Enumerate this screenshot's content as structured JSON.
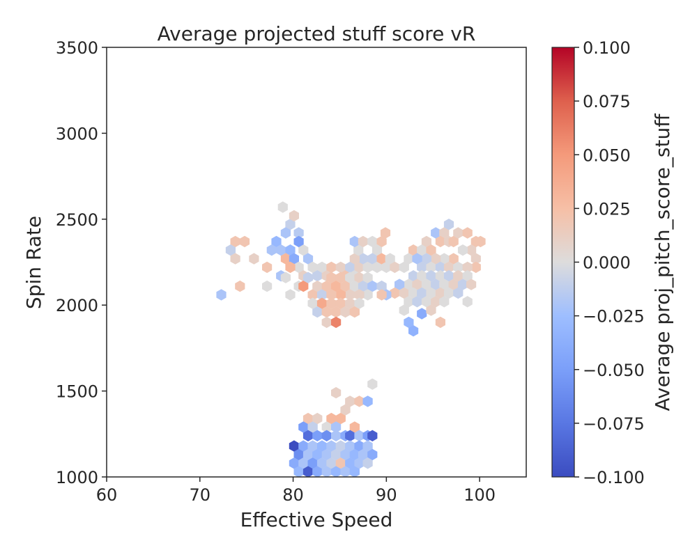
{
  "chart_data": {
    "type": "heatmap",
    "subtype": "hexbin",
    "title": "Average projected stuff score vR",
    "xlabel": "Effective Speed",
    "ylabel": "Spin Rate",
    "xlim": [
      60,
      105
    ],
    "ylim": [
      1000,
      3500
    ],
    "xticks": [
      60,
      70,
      80,
      90,
      100
    ],
    "yticks": [
      1000,
      1500,
      2000,
      2500,
      3000,
      3500
    ],
    "grid": false,
    "colorbar": {
      "label": "Average proj_pitch_score_stuff",
      "colormap": "coolwarm",
      "min": -0.1,
      "max": 0.1,
      "ticks": [
        "0.100",
        "0.075",
        "0.050",
        "0.025",
        "0.000",
        "−0.025",
        "−0.050",
        "−0.075",
        "−0.100"
      ],
      "tick_values": [
        0.1,
        0.075,
        0.05,
        0.025,
        0.0,
        -0.025,
        -0.05,
        -0.075,
        -0.1
      ]
    },
    "hexbins": [
      {
        "x": 78.9,
        "y": 2570,
        "v": 0.0
      },
      {
        "x": 79.7,
        "y": 2470,
        "v": -0.01
      },
      {
        "x": 80.1,
        "y": 2520,
        "v": 0.01
      },
      {
        "x": 79.2,
        "y": 2420,
        "v": -0.02
      },
      {
        "x": 80.6,
        "y": 2420,
        "v": -0.015
      },
      {
        "x": 81.1,
        "y": 2320,
        "v": 0.0
      },
      {
        "x": 78.2,
        "y": 2370,
        "v": -0.03
      },
      {
        "x": 78.7,
        "y": 2320,
        "v": -0.02
      },
      {
        "x": 79.7,
        "y": 2320,
        "v": -0.03
      },
      {
        "x": 80.6,
        "y": 2370,
        "v": -0.05
      },
      {
        "x": 73.8,
        "y": 2370,
        "v": 0.02
      },
      {
        "x": 74.8,
        "y": 2370,
        "v": 0.02
      },
      {
        "x": 73.3,
        "y": 2320,
        "v": -0.01
      },
      {
        "x": 73.8,
        "y": 2270,
        "v": 0.01
      },
      {
        "x": 75.8,
        "y": 2270,
        "v": 0.01
      },
      {
        "x": 77.2,
        "y": 2220,
        "v": 0.02
      },
      {
        "x": 77.7,
        "y": 2320,
        "v": -0.02
      },
      {
        "x": 79.2,
        "y": 2270,
        "v": 0.03
      },
      {
        "x": 80.1,
        "y": 2270,
        "v": -0.04
      },
      {
        "x": 80.6,
        "y": 2220,
        "v": 0.0
      },
      {
        "x": 81.6,
        "y": 2270,
        "v": -0.02
      },
      {
        "x": 82.1,
        "y": 2220,
        "v": 0.0
      },
      {
        "x": 83.1,
        "y": 2220,
        "v": 0.0
      },
      {
        "x": 78.7,
        "y": 2170,
        "v": -0.02
      },
      {
        "x": 79.7,
        "y": 2220,
        "v": 0.03
      },
      {
        "x": 81.1,
        "y": 2170,
        "v": 0.01
      },
      {
        "x": 82.6,
        "y": 2170,
        "v": -0.01
      },
      {
        "x": 83.6,
        "y": 2170,
        "v": 0.01
      },
      {
        "x": 84.1,
        "y": 2220,
        "v": 0.02
      },
      {
        "x": 85.1,
        "y": 2220,
        "v": 0.01
      },
      {
        "x": 85.6,
        "y": 2170,
        "v": 0.02
      },
      {
        "x": 86.1,
        "y": 2220,
        "v": -0.01
      },
      {
        "x": 86.6,
        "y": 2170,
        "v": 0.0
      },
      {
        "x": 87.1,
        "y": 2220,
        "v": 0.01
      },
      {
        "x": 87.5,
        "y": 2270,
        "v": -0.01
      },
      {
        "x": 86.6,
        "y": 2270,
        "v": 0.01
      },
      {
        "x": 87.0,
        "y": 2320,
        "v": 0.0
      },
      {
        "x": 86.6,
        "y": 2370,
        "v": -0.02
      },
      {
        "x": 87.5,
        "y": 2370,
        "v": 0.01
      },
      {
        "x": 88.5,
        "y": 2370,
        "v": 0.0
      },
      {
        "x": 89.5,
        "y": 2370,
        "v": 0.02
      },
      {
        "x": 89.9,
        "y": 2420,
        "v": 0.02
      },
      {
        "x": 89.0,
        "y": 2320,
        "v": 0.0
      },
      {
        "x": 88.0,
        "y": 2220,
        "v": 0.0
      },
      {
        "x": 88.5,
        "y": 2270,
        "v": -0.01
      },
      {
        "x": 89.0,
        "y": 2220,
        "v": 0.0
      },
      {
        "x": 89.5,
        "y": 2270,
        "v": 0.03
      },
      {
        "x": 90.0,
        "y": 2220,
        "v": 0.0
      },
      {
        "x": 90.4,
        "y": 2270,
        "v": 0.0
      },
      {
        "x": 90.9,
        "y": 2220,
        "v": 0.01
      },
      {
        "x": 91.9,
        "y": 2220,
        "v": 0.0
      },
      {
        "x": 92.4,
        "y": 2270,
        "v": 0.0
      },
      {
        "x": 92.9,
        "y": 2320,
        "v": 0.02
      },
      {
        "x": 93.8,
        "y": 2320,
        "v": 0.0
      },
      {
        "x": 94.3,
        "y": 2370,
        "v": 0.01
      },
      {
        "x": 94.8,
        "y": 2320,
        "v": 0.02
      },
      {
        "x": 95.3,
        "y": 2420,
        "v": -0.02
      },
      {
        "x": 96.2,
        "y": 2420,
        "v": 0.01
      },
      {
        "x": 96.7,
        "y": 2470,
        "v": -0.01
      },
      {
        "x": 95.8,
        "y": 2370,
        "v": 0.02
      },
      {
        "x": 96.7,
        "y": 2370,
        "v": 0.01
      },
      {
        "x": 97.2,
        "y": 2370,
        "v": 0.02
      },
      {
        "x": 97.7,
        "y": 2420,
        "v": 0.01
      },
      {
        "x": 98.7,
        "y": 2420,
        "v": 0.02
      },
      {
        "x": 99.6,
        "y": 2370,
        "v": 0.02
      },
      {
        "x": 99.1,
        "y": 2320,
        "v": 0.01
      },
      {
        "x": 99.6,
        "y": 2270,
        "v": 0.01
      },
      {
        "x": 100.1,
        "y": 2370,
        "v": 0.02
      },
      {
        "x": 99.6,
        "y": 2220,
        "v": 0.02
      },
      {
        "x": 98.2,
        "y": 2320,
        "v": 0.0
      },
      {
        "x": 97.2,
        "y": 2270,
        "v": 0.02
      },
      {
        "x": 96.2,
        "y": 2270,
        "v": 0.0
      },
      {
        "x": 95.3,
        "y": 2270,
        "v": 0.01
      },
      {
        "x": 94.3,
        "y": 2270,
        "v": -0.01
      },
      {
        "x": 93.3,
        "y": 2270,
        "v": -0.02
      },
      {
        "x": 93.8,
        "y": 2220,
        "v": -0.01
      },
      {
        "x": 94.8,
        "y": 2220,
        "v": 0.0
      },
      {
        "x": 95.8,
        "y": 2220,
        "v": -0.01
      },
      {
        "x": 96.7,
        "y": 2220,
        "v": 0.01
      },
      {
        "x": 97.7,
        "y": 2220,
        "v": 0.0
      },
      {
        "x": 98.7,
        "y": 2220,
        "v": 0.01
      },
      {
        "x": 92.9,
        "y": 2170,
        "v": -0.01
      },
      {
        "x": 93.8,
        "y": 2170,
        "v": 0.0
      },
      {
        "x": 94.8,
        "y": 2170,
        "v": -0.01
      },
      {
        "x": 95.8,
        "y": 2170,
        "v": 0.0
      },
      {
        "x": 96.7,
        "y": 2170,
        "v": -0.01
      },
      {
        "x": 97.7,
        "y": 2170,
        "v": 0.01
      },
      {
        "x": 98.7,
        "y": 2170,
        "v": 0.0
      },
      {
        "x": 92.4,
        "y": 2120,
        "v": 0.0
      },
      {
        "x": 93.3,
        "y": 2120,
        "v": 0.01
      },
      {
        "x": 94.3,
        "y": 2120,
        "v": 0.0
      },
      {
        "x": 95.3,
        "y": 2120,
        "v": -0.01
      },
      {
        "x": 96.2,
        "y": 2120,
        "v": 0.0
      },
      {
        "x": 97.2,
        "y": 2120,
        "v": 0.01
      },
      {
        "x": 98.2,
        "y": 2120,
        "v": -0.01
      },
      {
        "x": 99.1,
        "y": 2120,
        "v": 0.01
      },
      {
        "x": 91.4,
        "y": 2120,
        "v": -0.02
      },
      {
        "x": 90.9,
        "y": 2070,
        "v": 0.02
      },
      {
        "x": 91.9,
        "y": 2070,
        "v": 0.01
      },
      {
        "x": 92.9,
        "y": 2070,
        "v": 0.0
      },
      {
        "x": 93.8,
        "y": 2070,
        "v": -0.01
      },
      {
        "x": 94.8,
        "y": 2070,
        "v": 0.0
      },
      {
        "x": 95.8,
        "y": 2070,
        "v": 0.01
      },
      {
        "x": 96.7,
        "y": 2070,
        "v": 0.0
      },
      {
        "x": 97.7,
        "y": 2070,
        "v": -0.01
      },
      {
        "x": 92.4,
        "y": 2020,
        "v": 0.0
      },
      {
        "x": 93.3,
        "y": 2020,
        "v": -0.01
      },
      {
        "x": 94.3,
        "y": 2020,
        "v": 0.0
      },
      {
        "x": 95.3,
        "y": 2020,
        "v": 0.01
      },
      {
        "x": 96.2,
        "y": 2020,
        "v": 0.0
      },
      {
        "x": 98.7,
        "y": 2020,
        "v": 0.0
      },
      {
        "x": 91.9,
        "y": 1970,
        "v": 0.0
      },
      {
        "x": 93.8,
        "y": 1950,
        "v": -0.04
      },
      {
        "x": 94.8,
        "y": 1970,
        "v": 0.01
      },
      {
        "x": 95.8,
        "y": 1900,
        "v": 0.02
      },
      {
        "x": 92.4,
        "y": 1900,
        "v": -0.03
      },
      {
        "x": 92.9,
        "y": 1850,
        "v": -0.035
      },
      {
        "x": 72.3,
        "y": 2060,
        "v": -0.02
      },
      {
        "x": 74.3,
        "y": 2110,
        "v": 0.02
      },
      {
        "x": 77.2,
        "y": 2110,
        "v": 0.0
      },
      {
        "x": 79.2,
        "y": 2160,
        "v": 0.0
      },
      {
        "x": 79.7,
        "y": 2060,
        "v": 0.0
      },
      {
        "x": 80.6,
        "y": 2110,
        "v": 0.0
      },
      {
        "x": 81.1,
        "y": 2110,
        "v": 0.05
      },
      {
        "x": 81.6,
        "y": 2160,
        "v": -0.01
      },
      {
        "x": 82.1,
        "y": 2060,
        "v": 0.02
      },
      {
        "x": 82.6,
        "y": 2110,
        "v": 0.01
      },
      {
        "x": 83.1,
        "y": 2060,
        "v": -0.01
      },
      {
        "x": 83.6,
        "y": 2110,
        "v": 0.02
      },
      {
        "x": 84.1,
        "y": 2160,
        "v": 0.02
      },
      {
        "x": 84.6,
        "y": 2110,
        "v": 0.03
      },
      {
        "x": 85.1,
        "y": 2160,
        "v": 0.02
      },
      {
        "x": 85.6,
        "y": 2110,
        "v": 0.02
      },
      {
        "x": 86.1,
        "y": 2160,
        "v": 0.0
      },
      {
        "x": 86.6,
        "y": 2110,
        "v": 0.0
      },
      {
        "x": 87.1,
        "y": 2160,
        "v": 0.01
      },
      {
        "x": 87.5,
        "y": 2110,
        "v": -0.01
      },
      {
        "x": 88.0,
        "y": 2160,
        "v": 0.0
      },
      {
        "x": 88.5,
        "y": 2110,
        "v": -0.02
      },
      {
        "x": 89.5,
        "y": 2110,
        "v": -0.01
      },
      {
        "x": 90.0,
        "y": 2060,
        "v": -0.02
      },
      {
        "x": 89.5,
        "y": 2060,
        "v": 0.02
      },
      {
        "x": 88.0,
        "y": 2060,
        "v": 0.0
      },
      {
        "x": 87.1,
        "y": 2060,
        "v": 0.01
      },
      {
        "x": 86.1,
        "y": 2060,
        "v": 0.01
      },
      {
        "x": 85.1,
        "y": 2060,
        "v": 0.03
      },
      {
        "x": 84.1,
        "y": 2060,
        "v": 0.02
      },
      {
        "x": 82.1,
        "y": 2010,
        "v": 0.0
      },
      {
        "x": 83.1,
        "y": 2010,
        "v": 0.04
      },
      {
        "x": 84.1,
        "y": 2010,
        "v": 0.02
      },
      {
        "x": 85.1,
        "y": 2010,
        "v": 0.02
      },
      {
        "x": 86.1,
        "y": 2010,
        "v": 0.01
      },
      {
        "x": 87.1,
        "y": 2010,
        "v": 0.0
      },
      {
        "x": 82.6,
        "y": 1960,
        "v": -0.01
      },
      {
        "x": 83.6,
        "y": 1960,
        "v": 0.02
      },
      {
        "x": 84.6,
        "y": 1960,
        "v": 0.02
      },
      {
        "x": 85.6,
        "y": 1960,
        "v": 0.01
      },
      {
        "x": 86.6,
        "y": 1960,
        "v": 0.02
      },
      {
        "x": 83.6,
        "y": 1900,
        "v": 0.01
      },
      {
        "x": 84.6,
        "y": 1900,
        "v": 0.06
      },
      {
        "x": 88.5,
        "y": 1540,
        "v": 0.0
      },
      {
        "x": 84.6,
        "y": 1490,
        "v": 0.01
      },
      {
        "x": 86.1,
        "y": 1440,
        "v": 0.01
      },
      {
        "x": 87.1,
        "y": 1440,
        "v": 0.02
      },
      {
        "x": 88.0,
        "y": 1440,
        "v": -0.03
      },
      {
        "x": 85.6,
        "y": 1390,
        "v": 0.01
      },
      {
        "x": 81.6,
        "y": 1340,
        "v": 0.02
      },
      {
        "x": 82.6,
        "y": 1340,
        "v": 0.01
      },
      {
        "x": 84.1,
        "y": 1340,
        "v": 0.03
      },
      {
        "x": 85.1,
        "y": 1340,
        "v": 0.03
      },
      {
        "x": 81.1,
        "y": 1290,
        "v": -0.05
      },
      {
        "x": 82.1,
        "y": 1290,
        "v": -0.01
      },
      {
        "x": 83.6,
        "y": 1290,
        "v": 0.0
      },
      {
        "x": 84.6,
        "y": 1290,
        "v": -0.02
      },
      {
        "x": 86.6,
        "y": 1290,
        "v": 0.03
      },
      {
        "x": 81.6,
        "y": 1240,
        "v": -0.08
      },
      {
        "x": 82.6,
        "y": 1240,
        "v": -0.05
      },
      {
        "x": 83.6,
        "y": 1240,
        "v": -0.06
      },
      {
        "x": 84.6,
        "y": 1240,
        "v": -0.02
      },
      {
        "x": 85.6,
        "y": 1240,
        "v": -0.04
      },
      {
        "x": 86.1,
        "y": 1240,
        "v": -0.08
      },
      {
        "x": 87.1,
        "y": 1240,
        "v": -0.02
      },
      {
        "x": 88.0,
        "y": 1240,
        "v": -0.05
      },
      {
        "x": 88.5,
        "y": 1240,
        "v": -0.09
      },
      {
        "x": 80.1,
        "y": 1180,
        "v": -0.1
      },
      {
        "x": 81.1,
        "y": 1180,
        "v": -0.04
      },
      {
        "x": 82.1,
        "y": 1180,
        "v": -0.02
      },
      {
        "x": 83.1,
        "y": 1180,
        "v": -0.03
      },
      {
        "x": 84.1,
        "y": 1180,
        "v": -0.02
      },
      {
        "x": 85.1,
        "y": 1180,
        "v": -0.01
      },
      {
        "x": 86.1,
        "y": 1180,
        "v": -0.02
      },
      {
        "x": 87.1,
        "y": 1180,
        "v": -0.04
      },
      {
        "x": 88.0,
        "y": 1180,
        "v": -0.02
      },
      {
        "x": 80.6,
        "y": 1130,
        "v": -0.06
      },
      {
        "x": 81.6,
        "y": 1130,
        "v": -0.02
      },
      {
        "x": 82.6,
        "y": 1130,
        "v": -0.03
      },
      {
        "x": 83.6,
        "y": 1130,
        "v": -0.02
      },
      {
        "x": 84.6,
        "y": 1130,
        "v": -0.01
      },
      {
        "x": 85.6,
        "y": 1130,
        "v": -0.02
      },
      {
        "x": 86.6,
        "y": 1130,
        "v": -0.03
      },
      {
        "x": 87.5,
        "y": 1130,
        "v": -0.02
      },
      {
        "x": 88.5,
        "y": 1130,
        "v": -0.04
      },
      {
        "x": 80.1,
        "y": 1080,
        "v": -0.04
      },
      {
        "x": 81.1,
        "y": 1080,
        "v": -0.02
      },
      {
        "x": 82.1,
        "y": 1080,
        "v": -0.05
      },
      {
        "x": 83.1,
        "y": 1080,
        "v": -0.02
      },
      {
        "x": 84.1,
        "y": 1080,
        "v": -0.01
      },
      {
        "x": 85.1,
        "y": 1080,
        "v": 0.02
      },
      {
        "x": 86.1,
        "y": 1080,
        "v": -0.03
      },
      {
        "x": 87.1,
        "y": 1080,
        "v": -0.02
      },
      {
        "x": 88.0,
        "y": 1080,
        "v": -0.01
      },
      {
        "x": 80.6,
        "y": 1030,
        "v": -0.03
      },
      {
        "x": 81.6,
        "y": 1030,
        "v": -0.09
      },
      {
        "x": 82.6,
        "y": 1030,
        "v": -0.04
      },
      {
        "x": 83.6,
        "y": 1030,
        "v": -0.02
      },
      {
        "x": 84.6,
        "y": 1030,
        "v": -0.03
      },
      {
        "x": 85.6,
        "y": 1030,
        "v": -0.02
      },
      {
        "x": 86.6,
        "y": 1030,
        "v": -0.03
      }
    ]
  }
}
